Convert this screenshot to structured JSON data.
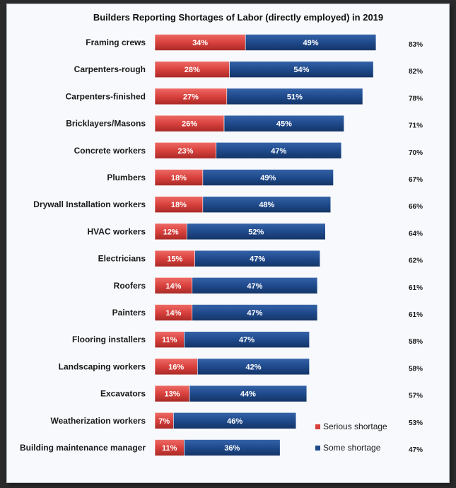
{
  "chart_data": {
    "type": "bar",
    "orientation": "horizontal",
    "stacked": true,
    "title": "Builders Reporting Shortages of Labor (directly employed) in 2019",
    "categories": [
      "Framing crews",
      "Carpenters-rough",
      "Carpenters-finished",
      "Bricklayers/Masons",
      "Concrete workers",
      "Plumbers",
      "Drywall Installation workers",
      "HVAC workers",
      "Electricians",
      "Roofers",
      "Painters",
      "Flooring installers",
      "Landscaping workers",
      "Excavators",
      "Weatherization workers",
      "Building maintenance manager"
    ],
    "series": [
      {
        "name": "Serious shortage",
        "color": "#d9413d",
        "values": [
          34,
          28,
          27,
          26,
          23,
          18,
          18,
          12,
          15,
          14,
          14,
          11,
          16,
          13,
          7,
          11
        ],
        "labels": [
          "34%",
          "28%",
          "27%",
          "26%",
          "23%",
          "18%",
          "18%",
          "12%",
          "15%",
          "14%",
          "14%",
          "11%",
          "16%",
          "13%",
          "7%",
          "11%"
        ]
      },
      {
        "name": "Some shortage",
        "color": "#1f4a8c",
        "values": [
          49,
          54,
          51,
          45,
          47,
          49,
          48,
          52,
          47,
          47,
          47,
          47,
          42,
          44,
          46,
          36
        ],
        "labels": [
          "49%",
          "54%",
          "51%",
          "45%",
          "47%",
          "49%",
          "48%",
          "52%",
          "47%",
          "47%",
          "47%",
          "47%",
          "42%",
          "44%",
          "46%",
          "36%"
        ]
      }
    ],
    "totals": [
      "83%",
      "82%",
      "78%",
      "71%",
      "70%",
      "67%",
      "66%",
      "64%",
      "62%",
      "61%",
      "61%",
      "58%",
      "58%",
      "57%",
      "53%",
      "47%"
    ],
    "xlim": [
      0,
      100
    ],
    "grid": false,
    "legend": "bottom-right"
  }
}
